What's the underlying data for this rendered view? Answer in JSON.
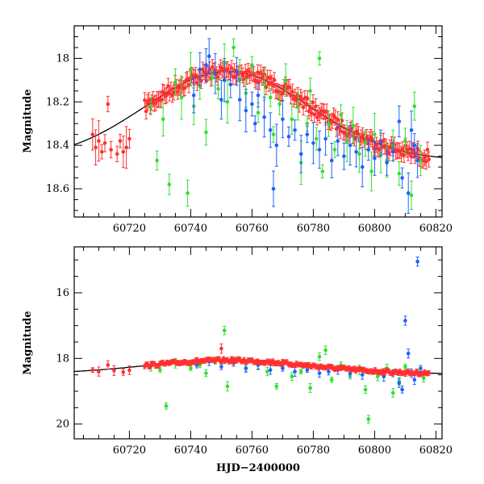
{
  "chart_data": [
    {
      "type": "scatter",
      "title": "",
      "xlabel": "",
      "ylabel": "Magnitude",
      "xlim": [
        60702,
        60822
      ],
      "ylim": [
        18.73,
        17.85
      ],
      "y_inverted": true,
      "xticks": [
        "60720",
        "60740",
        "60760",
        "60780",
        "60800",
        "60820"
      ],
      "yticks": [
        "18",
        "18.2",
        "18.4",
        "18.6"
      ],
      "series": [
        {
          "color": "#ff3030",
          "error_bars": true,
          "description_seed": 11,
          "points": [
            [
              60708,
              18.35
            ],
            [
              60709,
              18.41
            ],
            [
              60710,
              18.38
            ],
            [
              60711,
              18.43
            ],
            [
              60712,
              18.39
            ],
            [
              60713,
              18.21
            ],
            [
              60714,
              18.42
            ],
            [
              60716,
              18.44
            ],
            [
              60717,
              18.38
            ],
            [
              60718,
              18.43
            ],
            [
              60719,
              18.41
            ],
            [
              60720,
              18.37
            ]
          ],
          "band": {
            "x0": 60725,
            "x1": 60818,
            "step": 0.45,
            "scatter": 0.03,
            "err": 0.035
          }
        },
        {
          "color": "#30e030",
          "error_bars": true,
          "points": [
            [
              60727,
              18.22
            ],
            [
              60729,
              18.47
            ],
            [
              60731,
              18.28
            ],
            [
              60733,
              18.58
            ],
            [
              60735,
              18.11
            ],
            [
              60737,
              18.18
            ],
            [
              60739,
              18.62
            ],
            [
              60740,
              18.05
            ],
            [
              60741,
              18.22
            ],
            [
              60743,
              18.13
            ],
            [
              60745,
              18.34
            ],
            [
              60747,
              18.09
            ],
            [
              60749,
              18.14
            ],
            [
              60751,
              18.02
            ],
            [
              60752,
              18.2
            ],
            [
              60754,
              17.95
            ],
            [
              60756,
              18.1
            ],
            [
              60758,
              18.16
            ],
            [
              60760,
              18.03
            ],
            [
              60762,
              18.25
            ],
            [
              60764,
              18.12
            ],
            [
              60766,
              18.18
            ],
            [
              60767,
              18.35
            ],
            [
              60769,
              18.21
            ],
            [
              60771,
              18.1
            ],
            [
              60773,
              18.28
            ],
            [
              60775,
              18.22
            ],
            [
              60776,
              18.48
            ],
            [
              60778,
              18.3
            ],
            [
              60779,
              18.15
            ],
            [
              60781,
              18.37
            ],
            [
              60782,
              18.0
            ],
            [
              60783,
              18.52
            ],
            [
              60785,
              18.3
            ],
            [
              60787,
              18.42
            ],
            [
              60789,
              18.26
            ],
            [
              60791,
              18.38
            ],
            [
              60793,
              18.31
            ],
            [
              60795,
              18.44
            ],
            [
              60797,
              18.39
            ],
            [
              60799,
              18.52
            ],
            [
              60800,
              18.35
            ],
            [
              60802,
              18.44
            ],
            [
              60804,
              18.47
            ],
            [
              60806,
              18.4
            ],
            [
              60808,
              18.53
            ],
            [
              60810,
              18.38
            ],
            [
              60812,
              18.63
            ],
            [
              60813,
              18.22
            ],
            [
              60815,
              18.47
            ]
          ]
        },
        {
          "color": "#2060ff",
          "error_bars": true,
          "points": [
            [
              60741,
              18.17
            ],
            [
              60743,
              18.05
            ],
            [
              60745,
              18.03
            ],
            [
              60746,
              17.99
            ],
            [
              60748,
              18.07
            ],
            [
              60750,
              18.19
            ],
            [
              60751,
              18.1
            ],
            [
              60753,
              18.12
            ],
            [
              60755,
              18.06
            ],
            [
              60756,
              18.19
            ],
            [
              60758,
              18.24
            ],
            [
              60760,
              18.21
            ],
            [
              60761,
              18.3
            ],
            [
              60762,
              18.17
            ],
            [
              60764,
              18.27
            ],
            [
              60766,
              18.33
            ],
            [
              60767,
              18.6
            ],
            [
              60768,
              18.4
            ],
            [
              60770,
              18.28
            ],
            [
              60772,
              18.36
            ],
            [
              60774,
              18.33
            ],
            [
              60776,
              18.44
            ],
            [
              60778,
              18.35
            ],
            [
              60780,
              18.39
            ],
            [
              60782,
              18.42
            ],
            [
              60784,
              18.37
            ],
            [
              60786,
              18.47
            ],
            [
              60788,
              18.38
            ],
            [
              60790,
              18.45
            ],
            [
              60792,
              18.4
            ],
            [
              60794,
              18.43
            ],
            [
              60796,
              18.5
            ],
            [
              60798,
              18.42
            ],
            [
              60800,
              18.46
            ],
            [
              60802,
              18.39
            ],
            [
              60804,
              18.48
            ],
            [
              60806,
              18.43
            ],
            [
              60808,
              18.29
            ],
            [
              60809,
              18.55
            ],
            [
              60811,
              18.62
            ],
            [
              60812,
              18.33
            ],
            [
              60813,
              18.4
            ],
            [
              60814,
              18.47
            ]
          ]
        }
      ],
      "model_curve": {
        "color": "#000000",
        "peak_x": 60752,
        "peak_y": 18.06,
        "base_y": 18.47,
        "width": 38
      }
    },
    {
      "type": "scatter",
      "title": "",
      "xlabel": "HJD−2400000",
      "ylabel": "Magnitude",
      "xlim": [
        60702,
        60822
      ],
      "ylim": [
        20.45,
        14.6
      ],
      "y_inverted": true,
      "xticks": [
        "60720",
        "60740",
        "60760",
        "60780",
        "60800",
        "60820"
      ],
      "yticks": [
        "16",
        "18",
        "20"
      ],
      "series": [
        {
          "color": "#30e030",
          "error_bars": true,
          "points": [
            [
              60727,
              18.25
            ],
            [
              60730,
              18.35
            ],
            [
              60732,
              19.45
            ],
            [
              60735,
              18.15
            ],
            [
              60740,
              18.3
            ],
            [
              60743,
              18.2
            ],
            [
              60745,
              18.45
            ],
            [
              60748,
              18.1
            ],
            [
              60751,
              17.15
            ],
            [
              60752,
              18.85
            ],
            [
              60755,
              18.05
            ],
            [
              60758,
              18.3
            ],
            [
              60762,
              18.2
            ],
            [
              60765,
              18.4
            ],
            [
              60768,
              18.85
            ],
            [
              60770,
              18.25
            ],
            [
              60773,
              18.55
            ],
            [
              60776,
              18.4
            ],
            [
              60779,
              18.9
            ],
            [
              60782,
              17.95
            ],
            [
              60784,
              17.75
            ],
            [
              60786,
              18.65
            ],
            [
              60789,
              18.2
            ],
            [
              60792,
              18.5
            ],
            [
              60795,
              18.35
            ],
            [
              60797,
              18.95
            ],
            [
              60798,
              19.85
            ],
            [
              60801,
              18.55
            ],
            [
              60804,
              18.3
            ],
            [
              60806,
              19.05
            ],
            [
              60808,
              18.7
            ],
            [
              60810,
              18.25
            ],
            [
              60814,
              18.4
            ],
            [
              60816,
              18.6
            ]
          ]
        },
        {
          "color": "#2060ff",
          "error_bars": true,
          "points": [
            [
              60742,
              18.2
            ],
            [
              60746,
              18.1
            ],
            [
              60750,
              18.25
            ],
            [
              60754,
              18.15
            ],
            [
              60758,
              18.3
            ],
            [
              60762,
              18.2
            ],
            [
              60766,
              18.35
            ],
            [
              60770,
              18.3
            ],
            [
              60774,
              18.4
            ],
            [
              60778,
              18.35
            ],
            [
              60782,
              18.45
            ],
            [
              60785,
              18.4
            ],
            [
              60788,
              18.35
            ],
            [
              60792,
              18.45
            ],
            [
              60796,
              18.5
            ],
            [
              60800,
              18.4
            ],
            [
              60803,
              18.55
            ],
            [
              60806,
              18.45
            ],
            [
              60808,
              18.75
            ],
            [
              60809,
              18.95
            ],
            [
              60810,
              16.85
            ],
            [
              60811,
              17.85
            ],
            [
              60812,
              18.45
            ],
            [
              60813,
              18.65
            ],
            [
              60814,
              15.05
            ],
            [
              60815,
              18.3
            ]
          ]
        },
        {
          "color": "#ff3030",
          "error_bars": true,
          "points": [
            [
              60708,
              18.35
            ],
            [
              60710,
              18.4
            ],
            [
              60713,
              18.2
            ],
            [
              60715,
              18.37
            ],
            [
              60718,
              18.42
            ],
            [
              60720,
              18.36
            ],
            [
              60750,
              17.7
            ]
          ],
          "band": {
            "x0": 60725,
            "x1": 60818,
            "step": 0.45,
            "scatter": 0.05,
            "err": 0.07
          }
        }
      ],
      "model_curve": {
        "color": "#000000",
        "peak_x": 60752,
        "peak_y": 18.06,
        "base_y": 18.47,
        "width": 38
      }
    }
  ]
}
